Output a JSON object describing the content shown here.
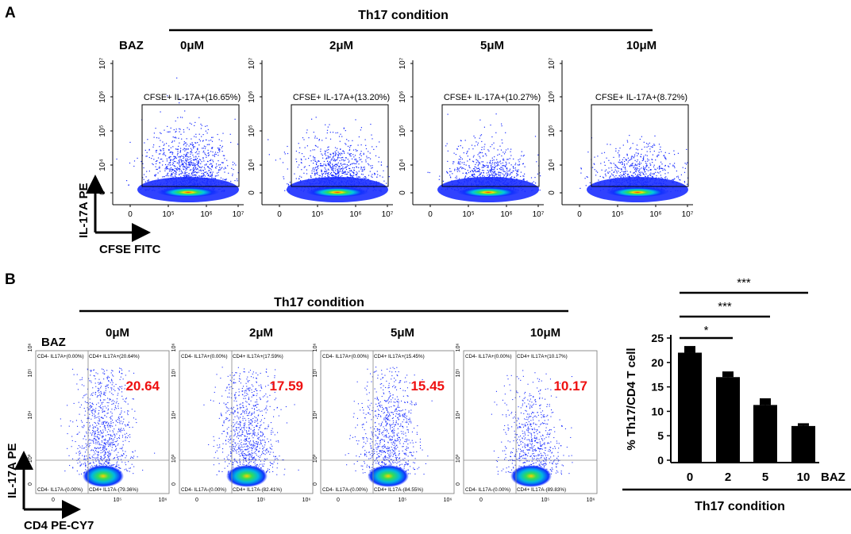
{
  "panelA": {
    "label": "A",
    "condition": "Th17 condition",
    "baz_label": "BAZ",
    "ylabel": "IL-17A  PE",
    "xlabel": "CFSE FITC",
    "xticks": [
      "0",
      "10⁵",
      "10⁶",
      "10⁷"
    ],
    "yticks": [
      "0",
      "10⁴",
      "10⁵",
      "10⁶",
      "10⁷"
    ],
    "plots": [
      {
        "dose": "0μM",
        "gate_label": "CFSE+ IL-17A+(16.65%)",
        "percent": 16.65
      },
      {
        "dose": "2μM",
        "gate_label": "CFSE+ IL-17A+(13.20%)",
        "percent": 13.2
      },
      {
        "dose": "5μM",
        "gate_label": "CFSE+ IL-17A+(10.27%)",
        "percent": 10.27
      },
      {
        "dose": "10μM",
        "gate_label": "CFSE+ IL-17A+(8.72%)",
        "percent": 8.72
      }
    ]
  },
  "panelB": {
    "label": "B",
    "condition": "Th17 condition",
    "baz_label": "BAZ",
    "ylabel": "IL-17A  PE",
    "xlabel": "CD4 PE-CY7",
    "xticks": [
      "0",
      "10⁵",
      "10⁶"
    ],
    "yticks": [
      "0",
      "10³",
      "10⁴",
      "10⁵",
      "10⁶"
    ],
    "plots": [
      {
        "dose": "0μM",
        "big_value": "20.64",
        "q_ul": "CD4- IL17A+(0.00%)",
        "q_ur": "CD4+ IL17A+(20.64%)",
        "q_ll": "CD4- IL17A-(0.00%)",
        "q_lr": "CD4+ IL17A-(79.36%)"
      },
      {
        "dose": "2μM",
        "big_value": "17.59",
        "q_ul": "CD4- IL17A+(0.00%)",
        "q_ur": "CD4+ IL17A+(17.59%)",
        "q_ll": "CD4- IL17A-(0.00%)",
        "q_lr": "CD4+ IL17A-(82.41%)"
      },
      {
        "dose": "5μM",
        "big_value": "15.45",
        "q_ul": "CD4- IL17A+(0.00%)",
        "q_ur": "CD4+ IL17A+(15.45%)",
        "q_ll": "CD4- IL17A-(0.00%)",
        "q_lr": "CD4+ IL17A-(84.55%)"
      },
      {
        "dose": "10μM",
        "big_value": "10.17",
        "q_ul": "CD4- IL17A+(0.00%)",
        "q_ur": "CD4+ IL17A+(10.17%)",
        "q_ll": "CD4- IL17A-(0.00%)",
        "q_lr": "CD4+ IL17A-(89.83%)"
      }
    ]
  },
  "chart_data": {
    "type": "bar",
    "title": "",
    "categories": [
      "0",
      "2",
      "5",
      "10"
    ],
    "values": [
      22,
      17,
      11.3,
      7
    ],
    "errors": [
      1.2,
      1.0,
      1.2,
      0.4
    ],
    "ylabel": "% Th17/CD4 T cell",
    "xlabel": "Th17 condition",
    "x_unit_label": "BAZ",
    "ylim": [
      0,
      25
    ],
    "yticks": [
      0,
      5,
      10,
      15,
      20,
      25
    ],
    "significance": [
      {
        "from": "0",
        "to": "2",
        "label": "*"
      },
      {
        "from": "0",
        "to": "5",
        "label": "***"
      },
      {
        "from": "0",
        "to": "10",
        "label": "***"
      }
    ],
    "bar_color": "#000000"
  }
}
